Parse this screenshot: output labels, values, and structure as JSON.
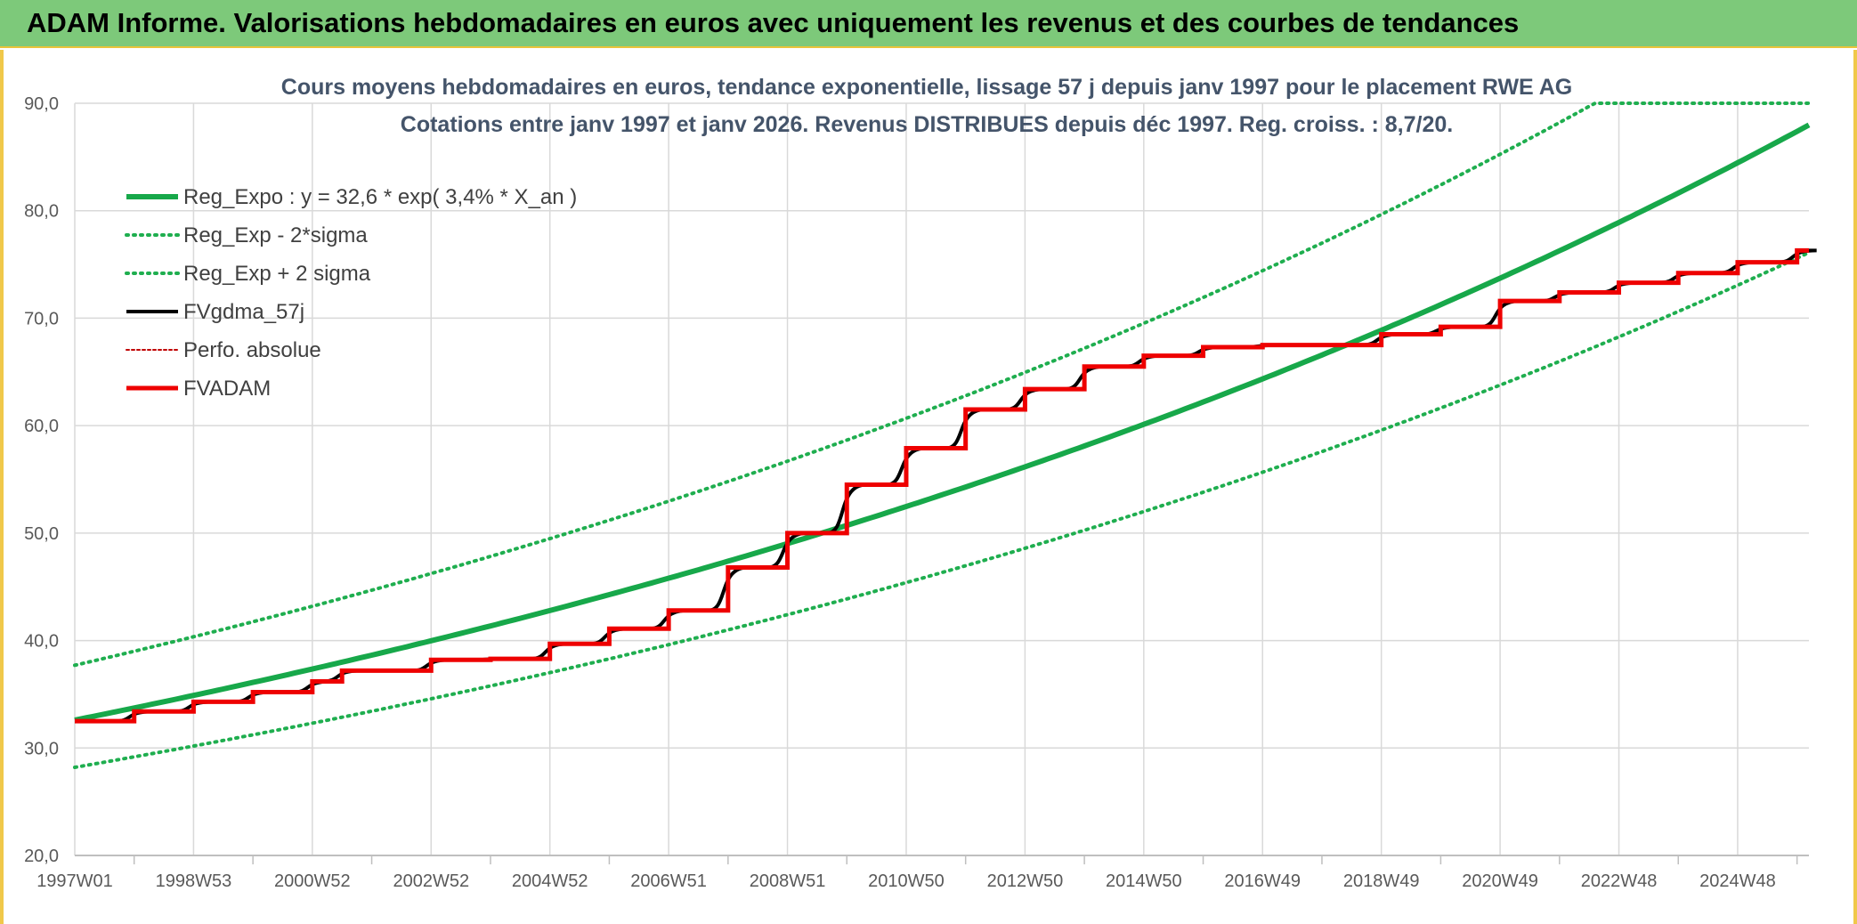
{
  "header": {
    "title": "ADAM Informe. Valorisations hebdomadaires en euros avec uniquement les revenus et des courbes de tendances"
  },
  "chart_data": {
    "type": "line",
    "title": "Cours moyens hebdomadaires en euros, tendance exponentielle, lissage 57 j depuis janv 1997 pour le placement RWE AG",
    "subtitle": "Cotations entre janv 1997 et janv 2026. Revenus DISTRIBUES depuis déc 1997. Reg. croiss. : 8,7/20.",
    "ylim": [
      20,
      90
    ],
    "y_ticks": [
      "20,0",
      "30,0",
      "40,0",
      "50,0",
      "60,0",
      "70,0",
      "80,0",
      "90,0"
    ],
    "x_range": [
      "1997W01",
      "2026W01"
    ],
    "x_ticks": [
      {
        "label": "1997W01",
        "year": 1997.0
      },
      {
        "label": "1998W53",
        "year": 1999.0
      },
      {
        "label": "2000W52",
        "year": 2001.0
      },
      {
        "label": "2002W52",
        "year": 2003.0
      },
      {
        "label": "2004W52",
        "year": 2005.0
      },
      {
        "label": "2006W51",
        "year": 2007.0
      },
      {
        "label": "2008W51",
        "year": 2009.0
      },
      {
        "label": "2010W50",
        "year": 2011.0
      },
      {
        "label": "2012W50",
        "year": 2013.0
      },
      {
        "label": "2014W50",
        "year": 2015.0
      },
      {
        "label": "2016W49",
        "year": 2017.0
      },
      {
        "label": "2018W49",
        "year": 2019.0
      },
      {
        "label": "2020W49",
        "year": 2021.0
      },
      {
        "label": "2022W48",
        "year": 2023.0
      },
      {
        "label": "2024W48",
        "year": 2025.0
      }
    ],
    "grid": true,
    "legend_position": "top-left",
    "colors": {
      "reg_expo": "#17a84a",
      "sigma": "#1fae4f",
      "fvgdma": "#000000",
      "perfo": "#c00000",
      "fvadam": "#ee0000"
    },
    "series": [
      {
        "name": "Reg_Expo : y = 32,6 * exp( 3,4% *  X_an )",
        "style": "solid-thick",
        "color": "#17a84a",
        "formula": {
          "a": 32.6,
          "rate": 0.034,
          "start_year": 1997.0
        }
      },
      {
        "name": "Reg_Exp - 2*sigma",
        "style": "dotted",
        "color": "#1fae4f",
        "formula": {
          "a": 28.2,
          "rate": 0.034,
          "start_year": 1997.0
        }
      },
      {
        "name": "Reg_Exp + 2 sigma",
        "style": "dotted",
        "color": "#1fae4f",
        "formula": {
          "a": 37.7,
          "rate": 0.034,
          "start_year": 1997.0
        },
        "cap": 90.0
      },
      {
        "name": "FVgdma_57j",
        "style": "solid-smooth",
        "color": "#000000"
      },
      {
        "name": "Perfo. absolue",
        "style": "dotted-thin",
        "color": "#c00000"
      },
      {
        "name": "FVADAM",
        "style": "step-thick",
        "color": "#ee0000",
        "steps": [
          {
            "year": 1997.0,
            "value": 32.5
          },
          {
            "year": 1998.0,
            "value": 33.4
          },
          {
            "year": 1999.0,
            "value": 34.3
          },
          {
            "year": 2000.0,
            "value": 35.2
          },
          {
            "year": 2001.0,
            "value": 36.2
          },
          {
            "year": 2001.5,
            "value": 37.2
          },
          {
            "year": 2003.0,
            "value": 38.2
          },
          {
            "year": 2004.0,
            "value": 38.3
          },
          {
            "year": 2005.0,
            "value": 39.7
          },
          {
            "year": 2006.0,
            "value": 41.1
          },
          {
            "year": 2007.0,
            "value": 42.8
          },
          {
            "year": 2008.0,
            "value": 46.8
          },
          {
            "year": 2009.0,
            "value": 50.0
          },
          {
            "year": 2010.0,
            "value": 54.5
          },
          {
            "year": 2011.0,
            "value": 57.9
          },
          {
            "year": 2012.0,
            "value": 61.5
          },
          {
            "year": 2013.0,
            "value": 63.4
          },
          {
            "year": 2014.0,
            "value": 65.5
          },
          {
            "year": 2015.0,
            "value": 66.5
          },
          {
            "year": 2016.0,
            "value": 67.3
          },
          {
            "year": 2017.0,
            "value": 67.5
          },
          {
            "year": 2018.0,
            "value": 67.5
          },
          {
            "year": 2019.0,
            "value": 68.5
          },
          {
            "year": 2020.0,
            "value": 69.2
          },
          {
            "year": 2021.0,
            "value": 71.6
          },
          {
            "year": 2022.0,
            "value": 72.4
          },
          {
            "year": 2023.0,
            "value": 73.3
          },
          {
            "year": 2024.0,
            "value": 74.2
          },
          {
            "year": 2025.0,
            "value": 75.2
          },
          {
            "year": 2026.0,
            "value": 76.3
          }
        ],
        "end_year": 2026.2
      }
    ]
  }
}
